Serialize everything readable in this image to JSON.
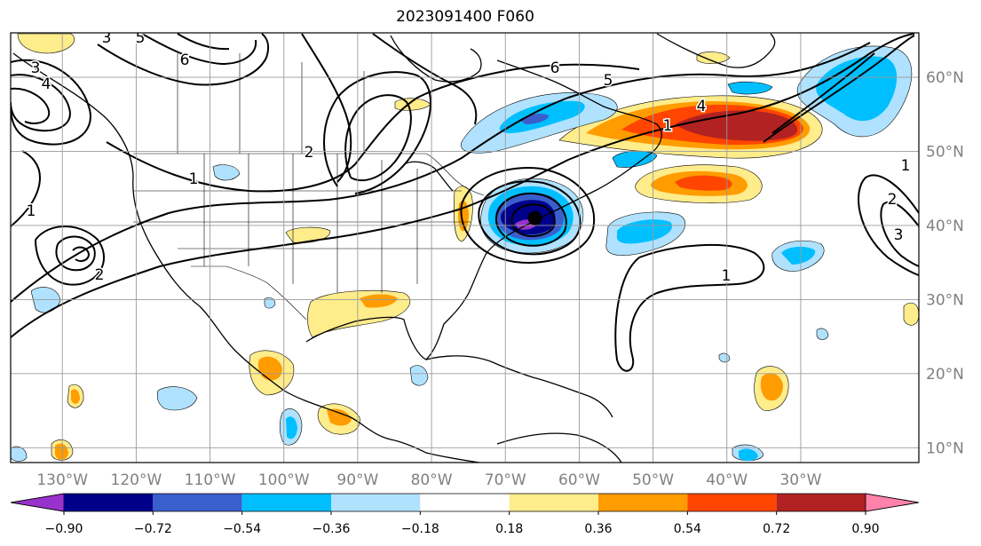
{
  "title": "2023091400 F060",
  "map": {
    "projection": "equirectangular",
    "lon_range": [
      -137,
      -14
    ],
    "lat_range": [
      8,
      66
    ],
    "lon_ticks": [
      "130°W",
      "120°W",
      "110°W",
      "100°W",
      "90°W",
      "80°W",
      "70°W",
      "60°W",
      "50°W",
      "40°W",
      "30°W"
    ],
    "lat_ticks": [
      "10°N",
      "20°N",
      "30°N",
      "40°N",
      "50°N",
      "60°N"
    ],
    "gridlines": true,
    "contour_labels": [
      "1",
      "1",
      "1",
      "2",
      "2",
      "3",
      "3",
      "4",
      "4",
      "5",
      "5",
      "6",
      "6",
      "1",
      "2",
      "3",
      "1"
    ],
    "storm_center": {
      "lon": -66,
      "lat": 41
    }
  },
  "colorbar": {
    "ticks": [
      "−0.90",
      "−0.72",
      "−0.54",
      "−0.36",
      "−0.18",
      "0.18",
      "0.36",
      "0.54",
      "0.72",
      "0.90"
    ],
    "colors": [
      "#9932cc",
      "#00008b",
      "#3a5fcd",
      "#00bfff",
      "#b0e2ff",
      "#ffffff",
      "#ffec8b",
      "#ff9c00",
      "#ff4500",
      "#b22222",
      "#ff82ab"
    ],
    "extend": "both"
  }
}
